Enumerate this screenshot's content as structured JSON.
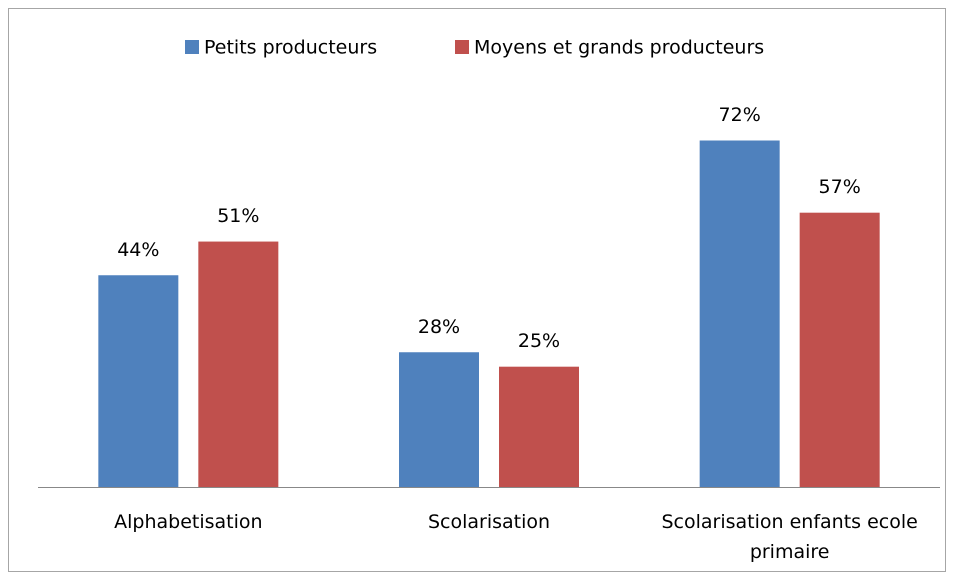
{
  "chart_data": {
    "type": "bar",
    "categories": [
      "Alphabetisation",
      "Scolarisation",
      "Scolarisation enfants ecole primaire"
    ],
    "series": [
      {
        "name": "Petits producteurs",
        "color": "#4f81bd",
        "values": [
          44,
          28,
          72
        ],
        "value_labels": [
          "44%",
          "28%",
          "72%"
        ]
      },
      {
        "name": "Moyens et grands producteurs",
        "color": "#c0504d",
        "values": [
          51,
          25,
          57
        ],
        "value_labels": [
          "51%",
          "25%",
          "57%"
        ]
      }
    ],
    "ylim": [
      0,
      80
    ],
    "legend": "top"
  }
}
